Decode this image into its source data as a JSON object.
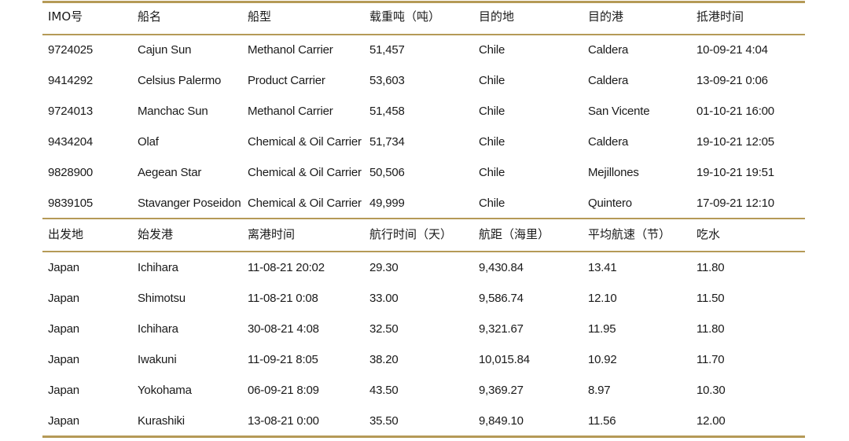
{
  "section1": {
    "headers": [
      "IMO号",
      "船名",
      "船型",
      "载重吨（吨）",
      "目的地",
      "目的港",
      "抵港时间"
    ],
    "rows": [
      [
        "9724025",
        "Cajun Sun",
        "Methanol Carrier",
        "51,457",
        "Chile",
        "Caldera",
        "10-09-21 4:04"
      ],
      [
        "9414292",
        "Celsius Palermo",
        "Product Carrier",
        "53,603",
        "Chile",
        "Caldera",
        "13-09-21 0:06"
      ],
      [
        "9724013",
        "Manchac Sun",
        "Methanol Carrier",
        "51,458",
        "Chile",
        "San Vicente",
        "01-10-21 16:00"
      ],
      [
        "9434204",
        "Olaf",
        "Chemical & Oil Carrier",
        "51,734",
        "Chile",
        "Caldera",
        "19-10-21 12:05"
      ],
      [
        "9828900",
        "Aegean Star",
        "Chemical & Oil Carrier",
        "50,506",
        "Chile",
        "Mejillones",
        "19-10-21 19:51"
      ],
      [
        "9839105",
        "Stavanger Poseidon",
        "Chemical & Oil Carrier",
        "49,999",
        "Chile",
        "Quintero",
        "17-09-21 12:10"
      ]
    ]
  },
  "section2": {
    "headers": [
      "出发地",
      "始发港",
      "离港时间",
      "航行时间（天）",
      "航距（海里）",
      "平均航速（节）",
      "吃水"
    ],
    "rows": [
      [
        "Japan",
        "Ichihara",
        "11-08-21 20:02",
        "29.30",
        "9,430.84",
        "13.41",
        "11.80"
      ],
      [
        "Japan",
        "Shimotsu",
        "11-08-21 0:08",
        "33.00",
        "9,586.74",
        "12.10",
        "11.50"
      ],
      [
        "Japan",
        "Ichihara",
        "30-08-21 4:08",
        "32.50",
        "9,321.67",
        "11.95",
        "11.80"
      ],
      [
        "Japan",
        "Iwakuni",
        "11-09-21 8:05",
        "38.20",
        "10,015.84",
        "10.92",
        "11.70"
      ],
      [
        "Japan",
        "Yokohama",
        "06-09-21 8:09",
        "43.50",
        "9,369.27",
        "8.97",
        "10.30"
      ],
      [
        "Japan",
        "Kurashiki",
        "13-08-21 0:00",
        "35.50",
        "9,849.10",
        "11.56",
        "12.00"
      ]
    ]
  }
}
